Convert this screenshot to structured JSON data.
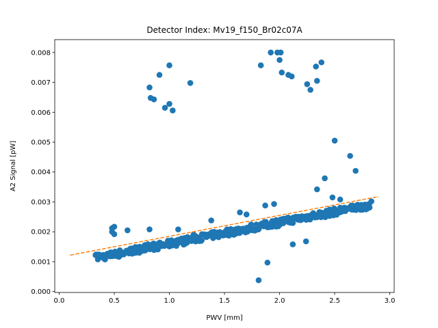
{
  "chart_data": {
    "type": "scatter",
    "title": "Detector Index: Mv19_f150_Br02c07A",
    "xlabel": "PWV [mm]",
    "ylabel": "A2 Signal [pW]",
    "xlim": [
      -0.04,
      3.04
    ],
    "ylim": [
      -3e-05,
      0.00843
    ],
    "x_ticks": [
      {
        "value": 0.0,
        "label": "0.0"
      },
      {
        "value": 0.5,
        "label": "0.5"
      },
      {
        "value": 1.0,
        "label": "1.0"
      },
      {
        "value": 1.5,
        "label": "1.5"
      },
      {
        "value": 2.0,
        "label": "2.0"
      },
      {
        "value": 2.5,
        "label": "2.5"
      },
      {
        "value": 3.0,
        "label": "3.0"
      }
    ],
    "y_ticks": [
      {
        "value": 0.0,
        "label": "0.000"
      },
      {
        "value": 0.001,
        "label": "0.001"
      },
      {
        "value": 0.002,
        "label": "0.002"
      },
      {
        "value": 0.003,
        "label": "0.003"
      },
      {
        "value": 0.004,
        "label": "0.004"
      },
      {
        "value": 0.005,
        "label": "0.005"
      },
      {
        "value": 0.006,
        "label": "0.006"
      },
      {
        "value": 0.007,
        "label": "0.007"
      },
      {
        "value": 0.008,
        "label": "0.008"
      }
    ],
    "grid": false,
    "colors": {
      "points": "#1f77b4",
      "fit": "#ff7f0e",
      "axes": "#000000"
    },
    "fit_line": {
      "name": "linear fit",
      "style": "dashed",
      "x": [
        0.1,
        2.9
      ],
      "y": [
        0.00122,
        0.00318
      ]
    },
    "series": [
      {
        "name": "measurements",
        "trend": {
          "x_start": 0.35,
          "x_end": 2.82,
          "y_start": 0.00114,
          "y_end": 0.0029,
          "count": 330
        },
        "x": [
          0.33,
          0.36,
          0.4,
          0.42,
          0.48,
          0.5,
          0.62,
          0.82,
          0.83,
          0.86,
          0.91,
          0.96,
          1.0,
          1.0,
          1.03,
          1.19,
          1.81,
          1.83,
          1.92,
          2.0,
          1.98,
          2.02,
          2.01,
          2.08,
          2.11,
          2.25,
          2.28,
          2.33,
          2.34,
          2.38,
          2.5,
          2.64,
          2.69,
          2.41,
          2.24,
          2.12,
          1.89,
          1.8,
          2.48,
          2.34,
          2.55,
          1.87,
          1.95,
          1.7,
          1.64,
          1.38,
          1.22,
          0.82,
          0.5,
          0.48,
          0.6,
          1.08
        ],
        "y": [
          0.00122,
          0.00124,
          0.00118,
          0.00116,
          0.002,
          0.00217,
          0.00205,
          0.00683,
          0.00648,
          0.00643,
          0.00725,
          0.00615,
          0.00757,
          0.00628,
          0.00606,
          0.00698,
          0.00038,
          0.00757,
          0.008,
          0.00775,
          0.008,
          0.00733,
          0.008,
          0.00725,
          0.0072,
          0.00694,
          0.00675,
          0.00753,
          0.00705,
          0.00767,
          0.00505,
          0.00454,
          0.00404,
          0.00379,
          0.00168,
          0.00158,
          0.00097,
          0.00216,
          0.00315,
          0.00342,
          0.00308,
          0.00288,
          0.00293,
          0.00258,
          0.00265,
          0.00238,
          0.00191,
          0.00208,
          0.00192,
          0.00212,
          0.00132,
          0.00208
        ]
      }
    ]
  }
}
